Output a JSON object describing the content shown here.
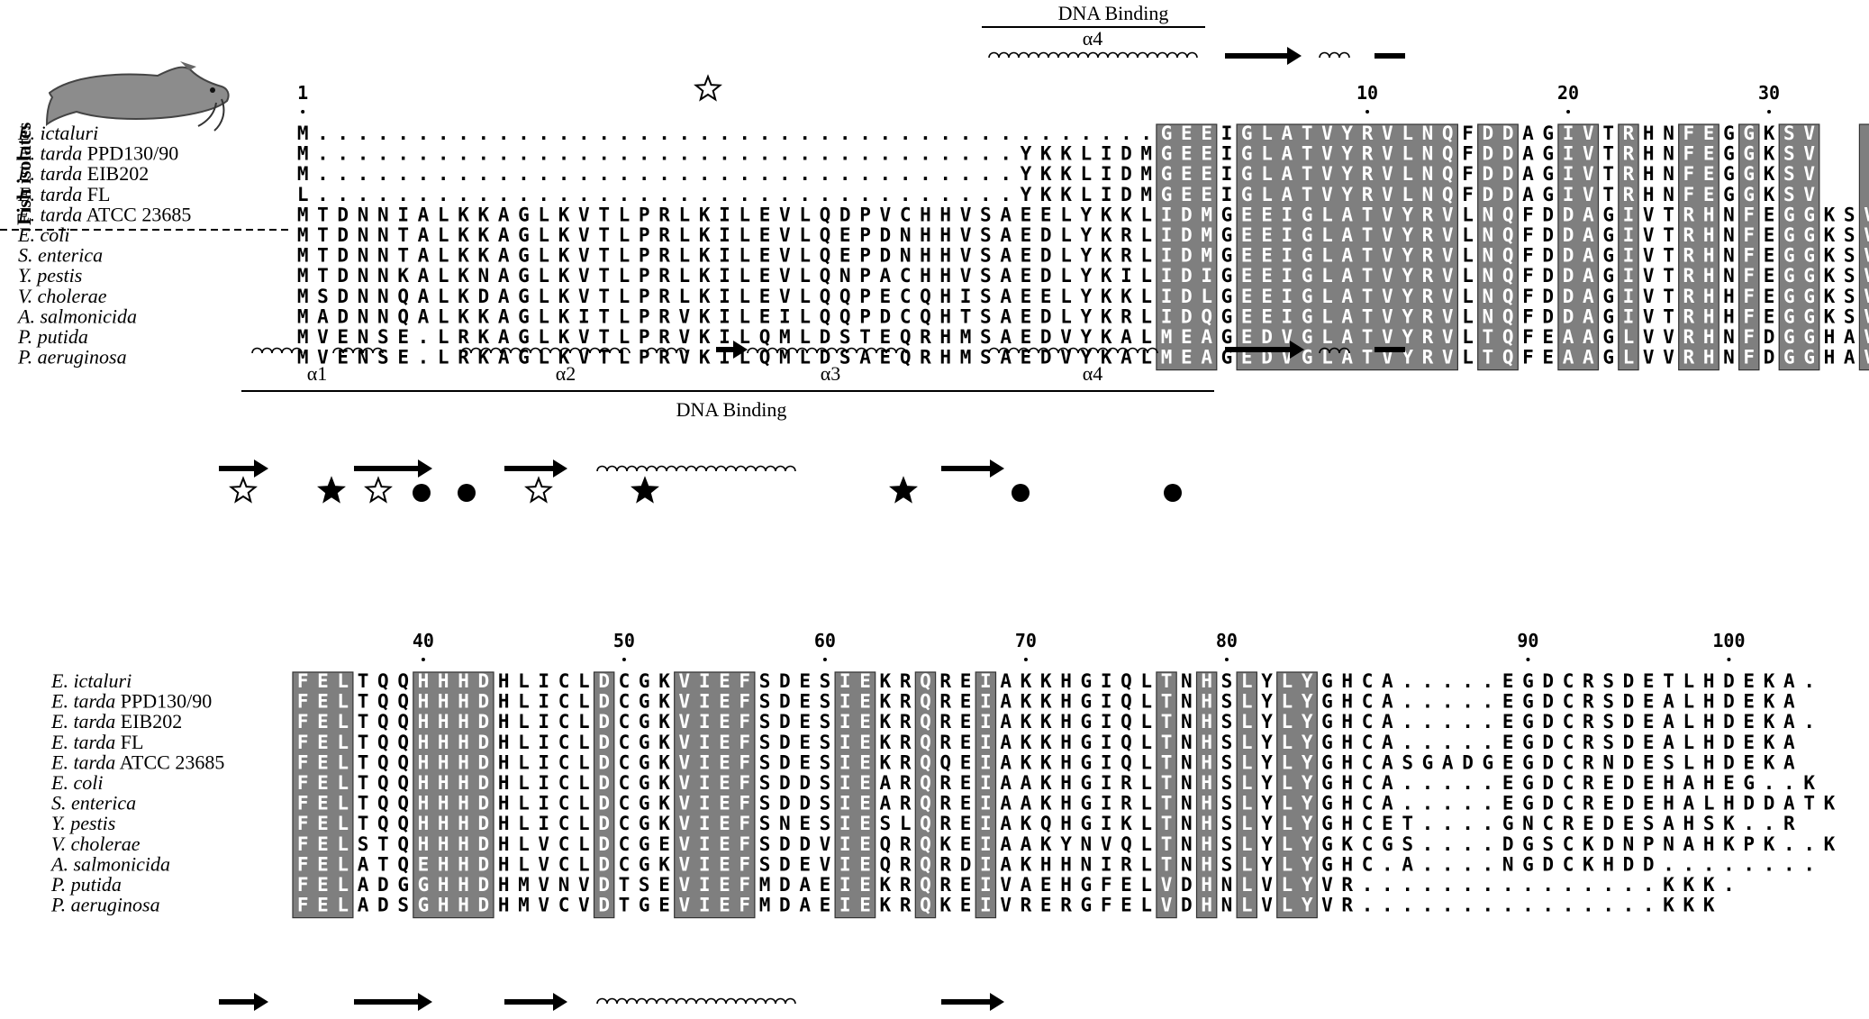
{
  "block1": {
    "sequences": [
      {
        "name_it": "E. ictaluri",
        "name_rest": "",
        "seq": "M..........................................GEEIGLATVYRVLNQFDDAGIVTRHNFEGGKSV"
      },
      {
        "name_it": "E. tarda",
        "name_rest": " PPD130/90",
        "seq": "M...................................YKKLIDMGEEIGLATVYRVLNQFDDAGIVTRHNFEGGKSV"
      },
      {
        "name_it": "E. tarda",
        "name_rest": " EIB202",
        "seq": "M...................................YKKLIDMGEEIGLATVYRVLNQFDDAGIVTRHNFEGGKSV"
      },
      {
        "name_it": "E. tarda",
        "name_rest": " FL",
        "seq": "L...................................YKKLIDMGEEIGLATVYRVLNQFDDAGIVTRHNFEGGKSV"
      },
      {
        "name_it": "E. tarda",
        "name_rest": " ATCC 23685",
        "seq": "MTDNNIALKKAGLKVTLPRLKILEVLQDPVCHHVSAEELYKKLIDMGEEIGLATVYRVLNQFDDAGIVTRHNFEGGKSV"
      },
      {
        "name_it": "E. coli",
        "name_rest": "",
        "seq": "MTDNNTALKKAGLKVTLPRLKILEVLQEPDNHHVSAEDLYKRLIDMGEEIGLATVYRVLNQFDDAGIVTRHNFEGGKSV"
      },
      {
        "name_it": "S. enterica",
        "name_rest": "",
        "seq": "MTDNNTALKKAGLKVTLPRLKILEVLQEPDNHHVSAEDLYKRLIDMGEEIGLATVYRVLNQFDDAGIVTRHNFEGGKSV"
      },
      {
        "name_it": "Y. pestis",
        "name_rest": "",
        "seq": "MTDNNKALKNAGLKVTLPRLKILEVLQNPACHHVSAEDLYKILIDIGEEIGLATVYRVLNQFDDAGIVTRHNFEGGKSV"
      },
      {
        "name_it": "V. cholerae",
        "name_rest": "",
        "seq": "MSDNNQALKDAGLKVTLPRLKILEVLQQPECQHISAEELYKKLIDLGEEIGLATVYRVLNQFDDAGIVTRHHFEGGKSV"
      },
      {
        "name_it": "A. salmonicida",
        "name_rest": "",
        "seq": "MADNNQALKKAGLKITLPRVKILEILQQPDCQHTSAEDLYKRLIDQGEEIGLATVYRVLNQFDDAGIVTRHHFEGGKSV"
      },
      {
        "name_it": "P. putida",
        "name_rest": "",
        "seq": "MVENSE.LRKAGLKVTLPRVKILQMLDSTEQRHMSAEDVYKALMEAGEDVGLATVYRVLTQFEAAGLVVRHNFDGGHAV"
      },
      {
        "name_it": "P. aeruginosa",
        "name_rest": "",
        "seq": "MVENSE.LRKAGLKVTLPRVKILQMLDSAEQRHMSAEDVYKALMEAGEDVGLATVYRVLTQFEAAGLVVRHNFDGGHAV"
      }
    ],
    "numbers": [
      {
        "label": "1",
        "col": 0
      },
      {
        "label": "10",
        "col": 53
      },
      {
        "label": "20",
        "col": 63
      },
      {
        "label": "30",
        "col": 73
      }
    ],
    "top_label": "DNA Binding",
    "top_helix": "α4",
    "bottom_helices": [
      "α1",
      "α2",
      "α3",
      "α4"
    ],
    "bottom_label": "DNA Binding",
    "group_label": "Fish isolates"
  },
  "block2": {
    "sequences": [
      {
        "name_it": "E. ictaluri",
        "name_rest": "",
        "seq": "FELTQQHHHDHLICLDCGKVIEFSDESIEKRQREIAKKHGIQLTNHSLYLYGHCA.....EGDCRSDETLHDEKA."
      },
      {
        "name_it": "E. tarda",
        "name_rest": " PPD130/90",
        "seq": "FELTQQHHHDHLICLDCGKVIEFSDESIEKRQREIAKKHGIQLTNHSLYLYGHCA.....EGDCRSDEALHDEKA"
      },
      {
        "name_it": "E. tarda",
        "name_rest": " EIB202",
        "seq": "FELTQQHHHDHLICLDCGKVIEFSDESIEKRQREIAKKHGIQLTNHSLYLYGHCA.....EGDCRSDEALHDEKA."
      },
      {
        "name_it": "E. tarda",
        "name_rest": " FL",
        "seq": "FELTQQHHHDHLICLDCGKVIEFSDESIEKRQREIAKKHGIQLTNHSLYLYGHCA.....EGDCRSDEALHDEKA"
      },
      {
        "name_it": "E. tarda",
        "name_rest": " ATCC 23685",
        "seq": "FELTQQHHHDHLICLDCGKVIEFSDESIEKRQQEIAKKHGIQLTNHSLYLYGHCASGADGEGDCRNDESLHDEKA"
      },
      {
        "name_it": "E. coli",
        "name_rest": "",
        "seq": "FELTQQHHHDHLICLDCGKVIEFSDDSIEARQREIAAKHGIRLTNHSLYLYGHCA.....EGDCREDEHAHEG..K"
      },
      {
        "name_it": "S. enterica",
        "name_rest": "",
        "seq": "FELTQQHHHDHLICLDCGKVIEFSDDSIEARQREIAAKHGIRLTNHSLYLYGHCA.....EGDCREDEHALHDDATK"
      },
      {
        "name_it": "Y. pestis",
        "name_rest": "",
        "seq": "FELTQQHHHDHLICLDCGKVIEFSNESIESLQREIAKQHGIKLTNHSLYLYGHCET....GNCREDESAHSK..R"
      },
      {
        "name_it": "V. cholerae",
        "name_rest": "",
        "seq": "FELSTQHHHDHLVCLDCGEVIEFSDDVIEQRQKEIAAKYNVQLTNHSLYLYGKCGS....DGSCKDNPNAHKPK..K"
      },
      {
        "name_it": "A. salmonicida",
        "name_rest": "",
        "seq": "FELATQEHHDHLVCLDCGKVIEFSDEVIEQRQRDIAKHHNIRLTNHSLYLYGHC.A....NGDCKHDD........"
      },
      {
        "name_it": "P. putida",
        "name_rest": "",
        "seq": "FELADGGHHDHMVNVDTSEVIEFMDAEIEKRQREIVAEHGFELVDHNLVLYVR...............KKK."
      },
      {
        "name_it": "P. aeruginosa",
        "name_rest": "",
        "seq": "FELADSGHHDHMVCVDTGEVIEFMDAEIEKRQKEIVRERGFELVDHNLVLYVR...............KKK"
      }
    ],
    "numbers": [
      {
        "label": "40",
        "col": 6
      },
      {
        "label": "50",
        "col": 16
      },
      {
        "label": "60",
        "col": 26
      },
      {
        "label": "70",
        "col": 36
      },
      {
        "label": "80",
        "col": 46
      },
      {
        "label": "90",
        "col": 61
      },
      {
        "label": "100",
        "col": 71
      }
    ]
  },
  "colors": {
    "highlight": "#7f7f7f",
    "highlight_text": "#ffffff",
    "text": "#000000"
  }
}
